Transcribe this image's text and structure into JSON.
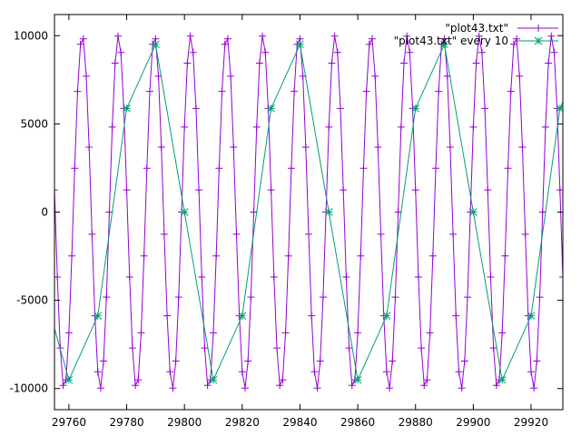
{
  "chart_data": {
    "type": "line",
    "title": "",
    "xlabel": "",
    "ylabel": "",
    "xlim": [
      29755,
      29931
    ],
    "ylim": [
      -11200,
      11200
    ],
    "grid": false,
    "legend_position": "top-right",
    "x_ticks": [
      29760,
      29780,
      29800,
      29820,
      29840,
      29860,
      29880,
      29900,
      29920
    ],
    "y_ticks": [
      -10000,
      -5000,
      0,
      5000,
      10000
    ],
    "x_tick_labels": [
      "29760",
      "29780",
      "29800",
      "29820",
      "29840",
      "29860",
      "29880",
      "29900",
      "29920"
    ],
    "y_tick_labels": [
      "-10000",
      "-5000",
      "0",
      "5000",
      "10000"
    ],
    "series": [
      {
        "name": "\"plot43.txt\"",
        "color": "#9400d3",
        "marker": "plus",
        "x_start": 29755,
        "x_step": 1,
        "values": [
          1253,
          -3681,
          -7705,
          -9823,
          -9511,
          -6845,
          -2487,
          2487,
          6845,
          9511,
          9823,
          7705,
          3681,
          -1253,
          -5878,
          -9048,
          -9980,
          -8443,
          -4818,
          0,
          4818,
          8443,
          9980,
          9048,
          5878,
          1253,
          -3681,
          -7705,
          -9823,
          -9511,
          -6845,
          -2487,
          2487,
          6845,
          9511,
          9823,
          7705,
          3681,
          -1253,
          -5878,
          -9048,
          -9980,
          -8443,
          -4818,
          0,
          4818,
          8443,
          9980,
          9048,
          5878,
          1253,
          -3681,
          -7705,
          -9823,
          -9511,
          -6845,
          -2487,
          2487,
          6845,
          9511,
          9823,
          7705,
          3681,
          -1253,
          -5878,
          -9048,
          -9980,
          -8443,
          -4818,
          0,
          4818,
          8443,
          9980,
          9048,
          5878,
          1253,
          -3681,
          -7705,
          -9823,
          -9511,
          -6845,
          -2487,
          2487,
          6845,
          9511,
          9823,
          7705,
          3681,
          -1253,
          -5878,
          -9048,
          -9980,
          -8443,
          -4818,
          0,
          4818,
          8443,
          9980,
          9048,
          5878,
          1253,
          -3681,
          -7705,
          -9823,
          -9511,
          -6845,
          -2487,
          2487,
          6845,
          9511,
          9823,
          7705,
          3681,
          -1253,
          -5878,
          -9048,
          -9980,
          -8443,
          -4818,
          0,
          4818,
          8443,
          9980,
          9048,
          5878,
          1253,
          -3681,
          -7705,
          -9823,
          -9511,
          -6845,
          -2487,
          2487,
          6845,
          9511,
          9823,
          7705,
          3681,
          -1253,
          -5878,
          -9048,
          -9980,
          -8443,
          -4818,
          0,
          4818,
          8443,
          9980,
          9048,
          5878,
          1253,
          -3681,
          -7705,
          -9823,
          -9511,
          -6845,
          -2487,
          2487,
          6845,
          9511,
          9823,
          7705,
          3681,
          -1253,
          -5878,
          -9048,
          -9980,
          -8443,
          -4818,
          0,
          4818,
          8443,
          9980,
          9048,
          5878,
          1253,
          -3681
        ]
      },
      {
        "name": "\"plot43.txt\" every 10",
        "color": "#009e73",
        "marker": "star",
        "x_start": 29750,
        "x_step": 10,
        "values": [
          -3681,
          -9511,
          -5878,
          5878,
          9511,
          0,
          -9511,
          -5878,
          5878,
          9511,
          0,
          -9511,
          -5878,
          5878,
          9511,
          0,
          -9511,
          -5878,
          5878,
          9511
        ]
      }
    ]
  }
}
